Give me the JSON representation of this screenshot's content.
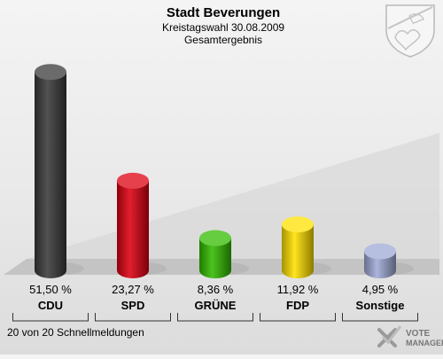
{
  "header": {
    "title": "Stadt Beverungen",
    "subtitle": "Kreistagswahl 30.08.2009",
    "subtitle2": "Gesamtergebnis"
  },
  "footer": {
    "status": "20 von 20 Schnellmeldungen",
    "brand_line1": "VOTE",
    "brand_line2": "MANAGER"
  },
  "emblem": {
    "icon": "coat-of-arms-icon"
  },
  "chart_data": {
    "type": "bar",
    "categories": [
      "CDU",
      "SPD",
      "GRÜNE",
      "FDP",
      "Sonstige"
    ],
    "values": [
      51.5,
      23.27,
      8.36,
      11.92,
      4.95
    ],
    "value_labels": [
      "51,50 %",
      "23,27 %",
      "8,36 %",
      "11,92 %",
      "4,95 %"
    ],
    "colors": [
      "#3a3a3a",
      "#dd0011",
      "#33bb00",
      "#ffe000",
      "#9faad6"
    ],
    "ylim": [
      0,
      55
    ],
    "grid": false,
    "legend": "none"
  }
}
